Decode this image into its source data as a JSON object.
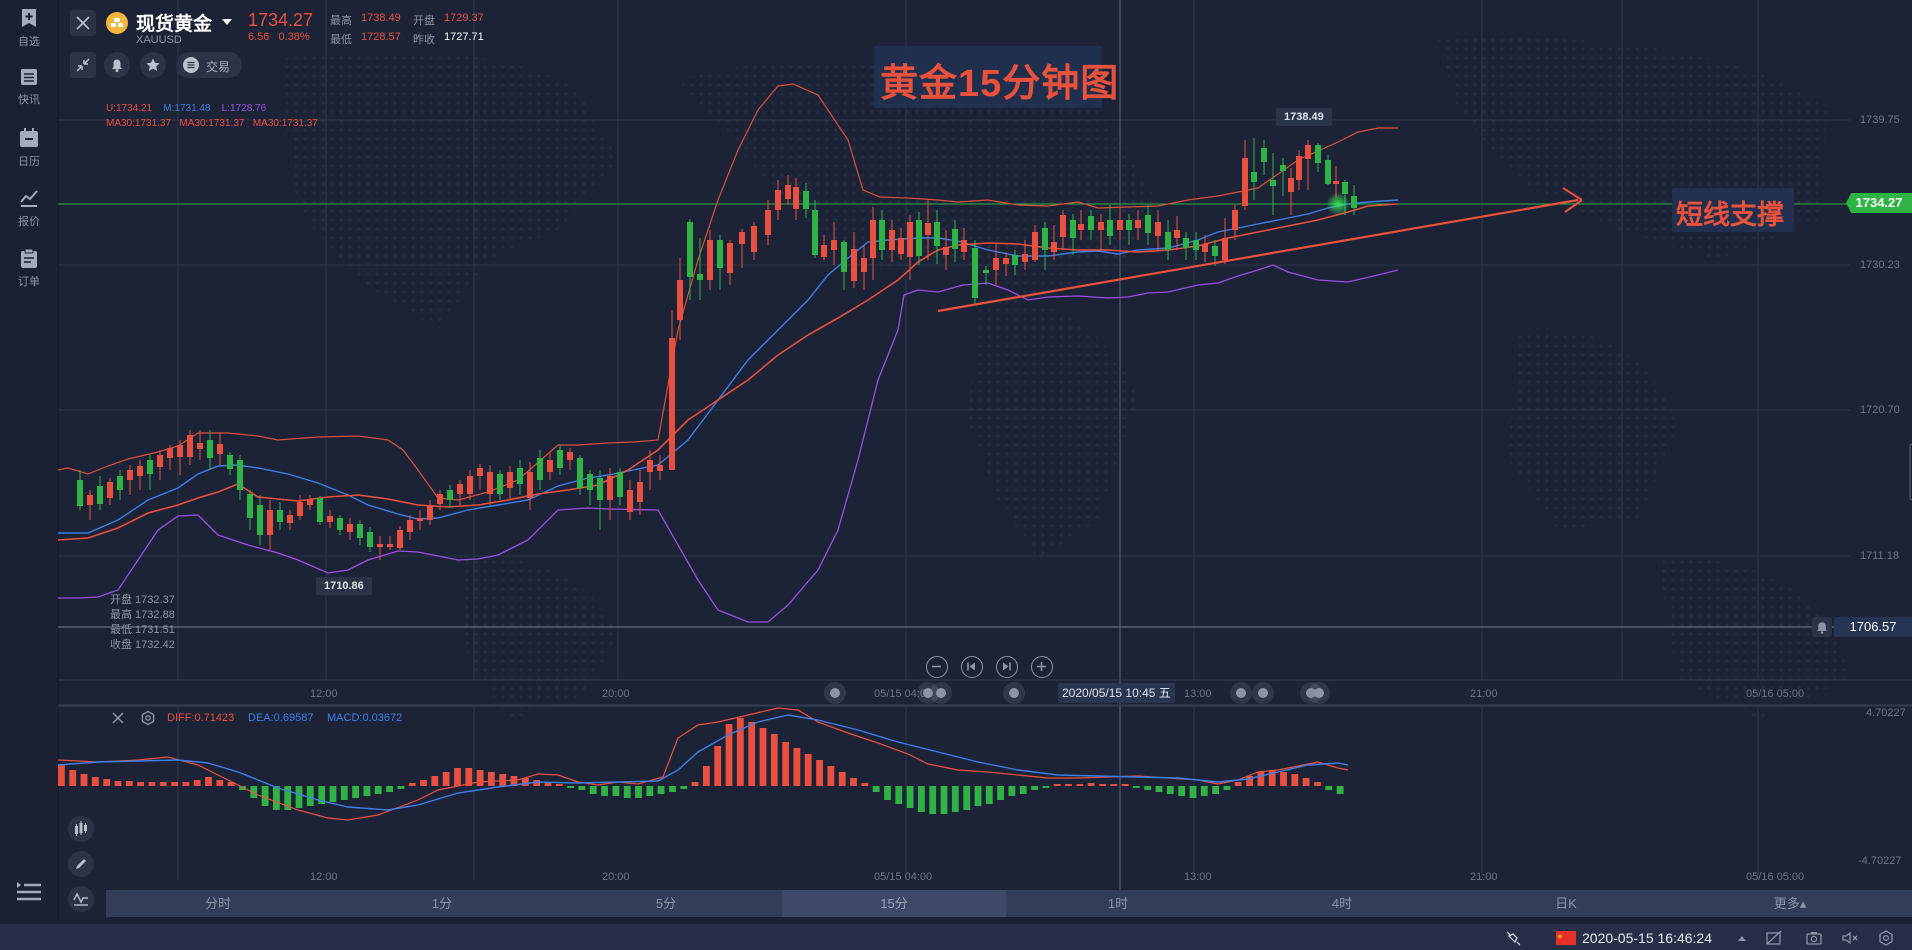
{
  "sidebar": {
    "items": [
      {
        "label": "自选",
        "icon": "bookmark-plus-icon"
      },
      {
        "label": "快讯",
        "icon": "news-list-icon"
      },
      {
        "label": "日历",
        "icon": "calendar-icon"
      },
      {
        "label": "报价",
        "icon": "quote-chart-icon"
      },
      {
        "label": "订单",
        "icon": "order-clipboard-icon"
      }
    ],
    "menu_icon": "collapse-menu-icon"
  },
  "header": {
    "name": "现货黄金",
    "symbol": "XAUUSD",
    "price": "1734.27",
    "change": "6.56",
    "change_pct": "0.38%",
    "stats": {
      "high_label": "最高",
      "high": "1738.49",
      "low_label": "最低",
      "low": "1728.57",
      "open_label": "开盘",
      "open": "1729.37",
      "prev_close_label": "昨收",
      "prev_close": "1727.71"
    },
    "trade_label": "交易"
  },
  "indicators": {
    "boll": {
      "u": "U:1734.21",
      "m": "M:1731.48",
      "l": "L:1728.76"
    },
    "ma": [
      "MA30:1731.37",
      "MA30:1731.37",
      "MA30:1731.37"
    ]
  },
  "annotations": {
    "title": "黄金15分钟图",
    "note": "短线支撑"
  },
  "price_axis": {
    "ticks": [
      "1739.75",
      "1730.23",
      "1720.70",
      "1711.18"
    ],
    "current_price": "1734.27",
    "alert_price": "1706.57",
    "high_marker": "1738.49",
    "low_marker": "1710.86"
  },
  "ohlc_tooltip": {
    "open": "开盘 1732.37",
    "high": "最高 1732.88",
    "low": "最低 1731.51",
    "close": "收盘 1732.42"
  },
  "time_axis": {
    "labels": [
      "12:00",
      "20:00",
      "05/15 04:00",
      "13:00",
      "21:00",
      "05/16 05:00"
    ],
    "crosshair_time": "2020/05/15 10:45 五"
  },
  "macd": {
    "diff": "DIFF:0.71423",
    "dea": "DEA:0.69587",
    "macd": "MACD:0.03672",
    "axis_top": "4.70227",
    "axis_bottom": "-4.70227"
  },
  "colors": {
    "up": "#e9503f",
    "down": "#2fb344",
    "boll_upper": "#d8503c",
    "boll_mid": "#3d7fe6",
    "boll_lower": "#9b4fe0",
    "ma": "#e9503f",
    "accent": "#e8523c"
  },
  "timeframes": [
    {
      "label": "分时",
      "active": false
    },
    {
      "label": "1分",
      "active": false
    },
    {
      "label": "5分",
      "active": false
    },
    {
      "label": "15分",
      "active": true
    },
    {
      "label": "1时",
      "active": false
    },
    {
      "label": "4时",
      "active": false
    },
    {
      "label": "日K",
      "active": false
    },
    {
      "label": "更多▴",
      "active": false
    }
  ],
  "statusbar": {
    "datetime": "2020-05-15 16:46:24",
    "flag": "cn-flag-icon"
  }
}
